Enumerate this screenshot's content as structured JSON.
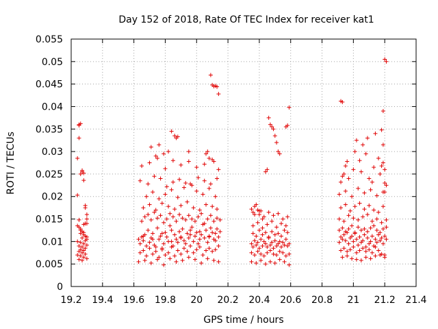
{
  "chart_data": {
    "type": "scatter",
    "title": "Day 152 of 2018, Rate Of TEC Index for receiver kat1",
    "xlabel": "GPS time / hours",
    "ylabel": "ROTI / TECUs",
    "xlim": [
      19.2,
      21.4
    ],
    "ylim": [
      0,
      0.055
    ],
    "xticks": [
      "19.2",
      "19.4",
      "19.6",
      "19.8",
      "20",
      "20.2",
      "20.4",
      "20.6",
      "20.8",
      "21",
      "21.2",
      "21.4"
    ],
    "yticks": [
      "0",
      "0.005",
      "0.01",
      "0.015",
      "0.02",
      "0.025",
      "0.03",
      "0.035",
      "0.04",
      "0.045",
      "0.05",
      "0.055"
    ],
    "grid": true,
    "marker": "plus",
    "color": "#e00000",
    "series": [
      {
        "name": "ROTI",
        "x": [
          19.24,
          19.24,
          19.25,
          19.25,
          19.25,
          19.26,
          19.26,
          19.27,
          19.27,
          19.28,
          19.28,
          19.29,
          19.29,
          19.3,
          19.3,
          19.3,
          19.25,
          19.26,
          19.27,
          19.28,
          19.29,
          19.3,
          19.24,
          19.26,
          19.28,
          19.3,
          19.25,
          19.27,
          19.29,
          19.26,
          19.28,
          19.25,
          19.27,
          19.29,
          19.24,
          19.26,
          19.28,
          19.3,
          19.25,
          19.27,
          19.29,
          19.24,
          19.26,
          19.28,
          19.3,
          19.27,
          19.29,
          19.25,
          19.28,
          19.26,
          19.63,
          19.64,
          19.65,
          19.66,
          19.67,
          19.68,
          19.69,
          19.7,
          19.71,
          19.72,
          19.73,
          19.74,
          19.75,
          19.76,
          19.77,
          19.78,
          19.79,
          19.8,
          19.81,
          19.82,
          19.83,
          19.84,
          19.85,
          19.86,
          19.87,
          19.88,
          19.89,
          19.9,
          19.91,
          19.92,
          19.93,
          19.94,
          19.95,
          19.96,
          19.97,
          19.98,
          19.99,
          20.0,
          20.01,
          20.02,
          20.03,
          20.04,
          20.05,
          20.06,
          20.07,
          20.08,
          20.09,
          20.1,
          20.11,
          20.12,
          20.13,
          20.14,
          20.15,
          19.64,
          19.66,
          19.68,
          19.7,
          19.72,
          19.74,
          19.76,
          19.78,
          19.8,
          19.82,
          19.84,
          19.86,
          19.88,
          19.9,
          19.92,
          19.94,
          19.96,
          19.98,
          20.0,
          20.02,
          20.04,
          20.06,
          20.08,
          20.1,
          20.12,
          20.14,
          19.65,
          19.67,
          19.69,
          19.71,
          19.73,
          19.75,
          19.77,
          19.79,
          19.81,
          19.83,
          19.85,
          19.87,
          19.89,
          19.91,
          19.93,
          19.95,
          19.97,
          19.99,
          20.01,
          20.03,
          20.05,
          20.07,
          20.09,
          20.11,
          20.13,
          20.15,
          19.63,
          19.67,
          19.71,
          19.75,
          19.79,
          19.83,
          19.87,
          19.91,
          19.95,
          19.99,
          20.03,
          20.07,
          20.11,
          20.14,
          19.66,
          19.7,
          19.74,
          19.78,
          19.82,
          19.86,
          19.9,
          19.94,
          19.98,
          20.02,
          20.06,
          20.1,
          20.13,
          19.68,
          19.72,
          19.76,
          19.8,
          19.84,
          19.88,
          19.92,
          19.96,
          20.0,
          20.04,
          20.08,
          20.12,
          19.64,
          19.69,
          19.73,
          19.77,
          19.81,
          19.85,
          19.89,
          19.93,
          19.97,
          20.01,
          20.05,
          20.09,
          20.13,
          19.65,
          19.7,
          19.75,
          19.8,
          19.85,
          19.9,
          19.95,
          20.0,
          20.05,
          20.1,
          20.14,
          19.66,
          19.72,
          19.78,
          19.84,
          19.9,
          19.96,
          20.02,
          20.08,
          20.12,
          19.84,
          19.86,
          19.87,
          19.88,
          19.76,
          19.79,
          19.82,
          20.09,
          20.1,
          20.11,
          20.12,
          20.13,
          20.14,
          20.06,
          20.08,
          20.11,
          20.07,
          19.71,
          19.74,
          19.95,
          20.35,
          20.36,
          20.37,
          20.38,
          20.39,
          20.4,
          20.41,
          20.42,
          20.43,
          20.44,
          20.45,
          20.46,
          20.47,
          20.48,
          20.49,
          20.5,
          20.51,
          20.52,
          20.53,
          20.54,
          20.55,
          20.56,
          20.57,
          20.58,
          20.59,
          20.35,
          20.37,
          20.39,
          20.41,
          20.43,
          20.45,
          20.47,
          20.49,
          20.51,
          20.53,
          20.55,
          20.57,
          20.59,
          20.36,
          20.38,
          20.4,
          20.42,
          20.44,
          20.46,
          20.48,
          20.5,
          20.52,
          20.54,
          20.56,
          20.58,
          20.35,
          20.38,
          20.41,
          20.44,
          20.47,
          20.5,
          20.53,
          20.56,
          20.59,
          20.36,
          20.39,
          20.42,
          20.45,
          20.48,
          20.51,
          20.54,
          20.57,
          20.37,
          20.4,
          20.43,
          20.46,
          20.49,
          20.52,
          20.55,
          20.58,
          20.35,
          20.36,
          20.37,
          20.38,
          20.39,
          20.4,
          20.41,
          20.42,
          20.46,
          20.47,
          20.48,
          20.49,
          20.5,
          20.51,
          20.52,
          20.53,
          20.57,
          20.58,
          20.59,
          20.45,
          20.44,
          20.91,
          20.92,
          20.93,
          20.94,
          20.95,
          20.96,
          20.97,
          20.98,
          20.99,
          21.0,
          21.01,
          21.02,
          21.03,
          21.04,
          21.05,
          21.06,
          21.07,
          21.08,
          21.09,
          21.1,
          21.11,
          21.12,
          21.13,
          21.14,
          21.15,
          21.16,
          21.17,
          21.18,
          21.19,
          21.2,
          21.21,
          20.91,
          20.93,
          20.95,
          20.97,
          20.99,
          21.01,
          21.03,
          21.05,
          21.07,
          21.09,
          21.11,
          21.13,
          21.15,
          21.17,
          21.19,
          21.21,
          20.92,
          20.94,
          20.96,
          20.98,
          21.0,
          21.02,
          21.04,
          21.06,
          21.08,
          21.1,
          21.12,
          21.14,
          21.16,
          21.18,
          21.2,
          20.91,
          20.94,
          20.97,
          21.0,
          21.03,
          21.06,
          21.09,
          21.12,
          21.15,
          21.18,
          21.21,
          20.92,
          20.95,
          20.98,
          21.01,
          21.04,
          21.07,
          21.1,
          21.13,
          21.16,
          21.19,
          20.93,
          20.96,
          20.99,
          21.02,
          21.05,
          21.08,
          21.11,
          21.14,
          21.17,
          21.2,
          20.91,
          20.95,
          20.99,
          21.03,
          21.07,
          21.11,
          21.15,
          21.19,
          20.92,
          20.93,
          20.94,
          20.95,
          20.96,
          20.97,
          21.0,
          21.01,
          21.02,
          21.04,
          21.05,
          21.06,
          21.08,
          21.09,
          21.1,
          21.12,
          21.13,
          21.14,
          21.16,
          21.17,
          21.18,
          21.19,
          21.2,
          21.21,
          20.92,
          20.93,
          21.19,
          21.2,
          21.21,
          21.18,
          21.19,
          21.2,
          21.2
        ],
        "y": [
          0.0203,
          0.0285,
          0.033,
          0.036,
          0.0358,
          0.0362,
          0.025,
          0.0255,
          0.0258,
          0.0252,
          0.0236,
          0.018,
          0.0175,
          0.016,
          0.015,
          0.014,
          0.0132,
          0.0128,
          0.0122,
          0.0115,
          0.0112,
          0.0105,
          0.01,
          0.0098,
          0.0095,
          0.0092,
          0.009,
          0.0088,
          0.0085,
          0.0082,
          0.008,
          0.0078,
          0.0075,
          0.0072,
          0.007,
          0.0068,
          0.0065,
          0.0062,
          0.006,
          0.0058,
          0.014,
          0.0135,
          0.0125,
          0.012,
          0.011,
          0.0108,
          0.0102,
          0.0148,
          0.0138,
          0.0118,
          0.0105,
          0.0095,
          0.011,
          0.0102,
          0.0115,
          0.009,
          0.0125,
          0.0098,
          0.0108,
          0.0118,
          0.0092,
          0.0088,
          0.013,
          0.0105,
          0.0112,
          0.0085,
          0.0095,
          0.012,
          0.011,
          0.01,
          0.0135,
          0.0125,
          0.009,
          0.0115,
          0.0105,
          0.0098,
          0.0122,
          0.011,
          0.0128,
          0.0102,
          0.0095,
          0.0118,
          0.0108,
          0.0125,
          0.0132,
          0.01,
          0.0112,
          0.012,
          0.0095,
          0.0105,
          0.0115,
          0.0138,
          0.0108,
          0.0125,
          0.0098,
          0.0112,
          0.013,
          0.012,
          0.0105,
          0.0118,
          0.0128,
          0.011,
          0.0122,
          0.0075,
          0.008,
          0.0068,
          0.0085,
          0.0072,
          0.0078,
          0.0065,
          0.0082,
          0.007,
          0.0075,
          0.0088,
          0.0068,
          0.008,
          0.0072,
          0.0085,
          0.0078,
          0.009,
          0.0075,
          0.0082,
          0.0088,
          0.007,
          0.008,
          0.0085,
          0.0078,
          0.0082,
          0.009,
          0.0145,
          0.0155,
          0.016,
          0.0148,
          0.0165,
          0.0152,
          0.0158,
          0.0142,
          0.015,
          0.0162,
          0.0155,
          0.0145,
          0.016,
          0.0152,
          0.0148,
          0.0158,
          0.015,
          0.0145,
          0.0155,
          0.0162,
          0.014,
          0.015,
          0.0158,
          0.0145,
          0.0152,
          0.0148,
          0.0055,
          0.0058,
          0.0052,
          0.006,
          0.0048,
          0.0062,
          0.0055,
          0.0058,
          0.0065,
          0.006,
          0.0052,
          0.0062,
          0.0058,
          0.0055,
          0.0175,
          0.0182,
          0.017,
          0.0185,
          0.0178,
          0.0172,
          0.018,
          0.0188,
          0.0175,
          0.017,
          0.0182,
          0.0178,
          0.0172,
          0.02,
          0.021,
          0.0195,
          0.0205,
          0.0215,
          0.0198,
          0.022,
          0.0228,
          0.0212,
          0.0205,
          0.0218,
          0.02,
          0.0235,
          0.0228,
          0.0245,
          0.024,
          0.0222,
          0.0232,
          0.0238,
          0.023,
          0.0225,
          0.0242,
          0.0235,
          0.0228,
          0.024,
          0.0268,
          0.0275,
          0.0285,
          0.0262,
          0.028,
          0.027,
          0.0278,
          0.0265,
          0.0272,
          0.0282,
          0.026,
          0.0112,
          0.0105,
          0.0118,
          0.01,
          0.0108,
          0.0115,
          0.0122,
          0.011,
          0.0102,
          0.0345,
          0.0335,
          0.033,
          0.0333,
          0.0315,
          0.0295,
          0.03,
          0.047,
          0.0448,
          0.0445,
          0.0446,
          0.0444,
          0.0428,
          0.0295,
          0.0285,
          0.0278,
          0.03,
          0.031,
          0.029,
          0.03,
          0.0095,
          0.0088,
          0.0102,
          0.0092,
          0.0098,
          0.0085,
          0.0105,
          0.009,
          0.01,
          0.0095,
          0.0088,
          0.0108,
          0.0092,
          0.0098,
          0.0085,
          0.0102,
          0.009,
          0.0095,
          0.01,
          0.0088,
          0.0098,
          0.0092,
          0.0105,
          0.009,
          0.0095,
          0.0075,
          0.007,
          0.0078,
          0.0072,
          0.0068,
          0.0075,
          0.008,
          0.0072,
          0.007,
          0.0078,
          0.0075,
          0.0068,
          0.0072,
          0.0118,
          0.0112,
          0.0125,
          0.0115,
          0.012,
          0.011,
          0.0122,
          0.0115,
          0.0118,
          0.0112,
          0.0125,
          0.012,
          0.0055,
          0.0052,
          0.0058,
          0.005,
          0.0055,
          0.0052,
          0.006,
          0.0055,
          0.0048,
          0.0135,
          0.0142,
          0.013,
          0.0138,
          0.0145,
          0.0132,
          0.014,
          0.0135,
          0.016,
          0.0168,
          0.0155,
          0.0165,
          0.0158,
          0.0162,
          0.015,
          0.0155,
          0.0172,
          0.0165,
          0.0178,
          0.0182,
          0.017,
          0.016,
          0.0168,
          0.015,
          0.0375,
          0.036,
          0.0355,
          0.035,
          0.0335,
          0.032,
          0.03,
          0.0295,
          0.0355,
          0.0358,
          0.0398,
          0.026,
          0.0255,
          0.0098,
          0.011,
          0.0105,
          0.0115,
          0.0102,
          0.012,
          0.0095,
          0.0108,
          0.0112,
          0.01,
          0.0118,
          0.0105,
          0.0092,
          0.011,
          0.0098,
          0.0102,
          0.0115,
          0.0088,
          0.0108,
          0.0095,
          0.01,
          0.0112,
          0.009,
          0.0105,
          0.0098,
          0.0115,
          0.0102,
          0.0108,
          0.0095,
          0.0112,
          0.0105,
          0.0125,
          0.013,
          0.0122,
          0.0128,
          0.0135,
          0.012,
          0.0132,
          0.0125,
          0.0128,
          0.0122,
          0.013,
          0.0135,
          0.0125,
          0.012,
          0.0128,
          0.0132,
          0.008,
          0.0085,
          0.0078,
          0.0082,
          0.0088,
          0.0075,
          0.008,
          0.0085,
          0.0078,
          0.0082,
          0.0075,
          0.0088,
          0.008,
          0.0072,
          0.007,
          0.015,
          0.0145,
          0.0158,
          0.0152,
          0.0148,
          0.0155,
          0.016,
          0.0145,
          0.015,
          0.0142,
          0.0148,
          0.0175,
          0.0182,
          0.0168,
          0.0178,
          0.0185,
          0.0172,
          0.018,
          0.017,
          0.0165,
          0.0178,
          0.0065,
          0.0068,
          0.0062,
          0.006,
          0.0058,
          0.0065,
          0.0062,
          0.0068,
          0.007,
          0.0065,
          0.0205,
          0.0212,
          0.02,
          0.0218,
          0.0208,
          0.0215,
          0.0202,
          0.021,
          0.0232,
          0.0245,
          0.025,
          0.0268,
          0.0278,
          0.024,
          0.026,
          0.03,
          0.0325,
          0.028,
          0.0255,
          0.0315,
          0.0295,
          0.033,
          0.024,
          0.0232,
          0.0265,
          0.034,
          0.0285,
          0.025,
          0.0268,
          0.0275,
          0.023,
          0.0225,
          0.0412,
          0.041,
          0.039,
          0.0505,
          0.05,
          0.0348,
          0.0315,
          0.026,
          0.021
        ]
      }
    ]
  }
}
